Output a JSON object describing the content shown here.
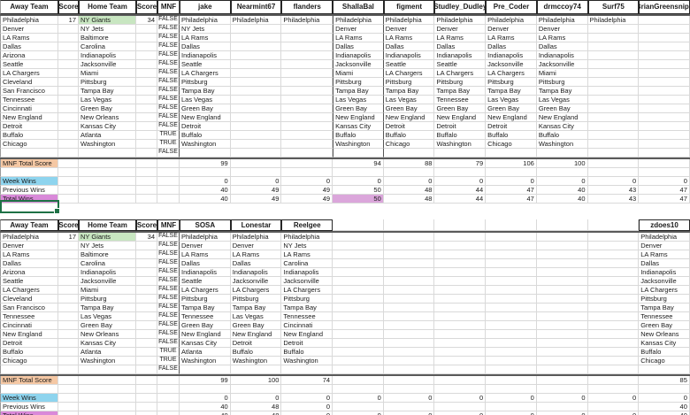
{
  "columns": {
    "away": "Away Team",
    "score": "Score",
    "home": "Home Team",
    "mnf": "MNF"
  },
  "row_labels": {
    "mnf_total": "MNF Total Score",
    "week_wins": "Week Wins",
    "previous_wins": "Previous Wins",
    "total_wins": "Total Wins"
  },
  "colors": {
    "winner_green": "#c8e6c1",
    "mnf_total_peach": "#f5c8a4",
    "week_wins_blue": "#8ed4ee",
    "total_wins_plum": "#d989d9",
    "leader_cell_plum": "#dba6db",
    "selection_green": "#1e7145",
    "gridline": "#d9d9d9",
    "thick_border": "#5a5a5a"
  },
  "games": [
    {
      "away": "Philadelphia",
      "away_score": "17",
      "home": "NY Giants",
      "home_score": "34",
      "mnf": "FALSE"
    },
    {
      "away": "Denver",
      "away_score": "",
      "home": "NY Jets",
      "home_score": "",
      "mnf": "FALSE"
    },
    {
      "away": "LA Rams",
      "away_score": "",
      "home": "Baltimore",
      "home_score": "",
      "mnf": "FALSE"
    },
    {
      "away": "Dallas",
      "away_score": "",
      "home": "Carolina",
      "home_score": "",
      "mnf": "FALSE"
    },
    {
      "away": "Arizona",
      "away_score": "",
      "home": "Indianapolis",
      "home_score": "",
      "mnf": "FALSE"
    },
    {
      "away": "Seattle",
      "away_score": "",
      "home": "Jacksonville",
      "home_score": "",
      "mnf": "FALSE"
    },
    {
      "away": "LA Chargers",
      "away_score": "",
      "home": "Miami",
      "home_score": "",
      "mnf": "FALSE"
    },
    {
      "away": "Cleveland",
      "away_score": "",
      "home": "Pittsburg",
      "home_score": "",
      "mnf": "FALSE"
    },
    {
      "away": "San Francisco",
      "away_score": "",
      "home": "Tampa Bay",
      "home_score": "",
      "mnf": "FALSE"
    },
    {
      "away": "Tennessee",
      "away_score": "",
      "home": "Las Vegas",
      "home_score": "",
      "mnf": "FALSE"
    },
    {
      "away": "Cincinnati",
      "away_score": "",
      "home": "Green Bay",
      "home_score": "",
      "mnf": "FALSE"
    },
    {
      "away": "New England",
      "away_score": "",
      "home": "New Orleans",
      "home_score": "",
      "mnf": "FALSE"
    },
    {
      "away": "Detroit",
      "away_score": "",
      "home": "Kansas City",
      "home_score": "",
      "mnf": "FALSE"
    },
    {
      "away": "Buffalo",
      "away_score": "",
      "home": "Atlanta",
      "home_score": "",
      "mnf": "TRUE"
    },
    {
      "away": "Chicago",
      "away_score": "",
      "home": "Washington",
      "home_score": "",
      "mnf": "TRUE"
    },
    {
      "away": "",
      "away_score": "",
      "home": "",
      "home_score": "",
      "mnf": "FALSE"
    }
  ],
  "sections": [
    {
      "players": [
        {
          "name": "jake",
          "picks": [
            "Philadelphia",
            "NY Jets",
            "LA Rams",
            "Dallas",
            "Indianapolis",
            "Seattle",
            "LA Chargers",
            "Pittsburg",
            "Tampa Bay",
            "Las Vegas",
            "Green Bay",
            "New England",
            "Detroit",
            "Buffalo",
            "Washington"
          ],
          "mnf_total": "99",
          "week_wins": "0",
          "previous_wins": "40",
          "total_wins": "40"
        },
        {
          "name": "Nearmint67",
          "picks": [
            "Philadelphia",
            "",
            "",
            "",
            "",
            "",
            "",
            "",
            "",
            "",
            "",
            "",
            "",
            "",
            ""
          ],
          "mnf_total": "",
          "week_wins": "0",
          "previous_wins": "49",
          "total_wins": "49"
        },
        {
          "name": "flanders",
          "picks": [
            "Philadelphia",
            "",
            "",
            "",
            "",
            "",
            "",
            "",
            "",
            "",
            "",
            "",
            "",
            "",
            ""
          ],
          "mnf_total": "",
          "week_wins": "0",
          "previous_wins": "49",
          "total_wins": "49"
        },
        {
          "name": "ShallaBal",
          "picks": [
            "Philadelphia",
            "Denver",
            "LA Rams",
            "Dallas",
            "Indianapolis",
            "Jacksonville",
            "Miami",
            "Pittsburg",
            "Tampa Bay",
            "Las Vegas",
            "Green Bay",
            "New England",
            "Kansas City",
            "Buffalo",
            "Washington"
          ],
          "mnf_total": "94",
          "week_wins": "0",
          "previous_wins": "50",
          "total_wins": "50",
          "highlight_total": true
        },
        {
          "name": "figment",
          "picks": [
            "Philadelphia",
            "Denver",
            "LA Rams",
            "Dallas",
            "Indianapolis",
            "Seattle",
            "LA Chargers",
            "Pittsburg",
            "Tampa Bay",
            "Las Vegas",
            "Green Bay",
            "New England",
            "Detroit",
            "Buffalo",
            "Chicago"
          ],
          "mnf_total": "88",
          "week_wins": "0",
          "previous_wins": "48",
          "total_wins": "48"
        },
        {
          "name": "Studley_Dudley",
          "picks": [
            "Philadelphia",
            "Denver",
            "LA Rams",
            "Dallas",
            "Indianapolis",
            "Seattle",
            "LA Chargers",
            "Pittsburg",
            "Tampa Bay",
            "Tennessee",
            "Green Bay",
            "New England",
            "Detroit",
            "Buffalo",
            "Washington"
          ],
          "mnf_total": "79",
          "week_wins": "0",
          "previous_wins": "44",
          "total_wins": "44"
        },
        {
          "name": "Pre_Coder",
          "picks": [
            "Philadelphia",
            "Denver",
            "LA Rams",
            "Dallas",
            "Indianapolis",
            "Jacksonville",
            "LA Chargers",
            "Pittsburg",
            "Tampa Bay",
            "Las Vegas",
            "Green Bay",
            "New England",
            "Detroit",
            "Buffalo",
            "Chicago"
          ],
          "mnf_total": "106",
          "week_wins": "0",
          "previous_wins": "47",
          "total_wins": "47"
        },
        {
          "name": "drmccoy74",
          "picks": [
            "Philadelphia",
            "Denver",
            "LA Rams",
            "Dallas",
            "Indianapolis",
            "Jacksonville",
            "Miami",
            "Pittsburg",
            "Tampa Bay",
            "Las Vegas",
            "Green Bay",
            "New England",
            "Kansas City",
            "Buffalo",
            "Washington"
          ],
          "mnf_total": "100",
          "week_wins": "0",
          "previous_wins": "40",
          "total_wins": "40"
        },
        {
          "name": "Surf75",
          "picks": [
            "Philadelphia",
            "",
            "",
            "",
            "",
            "",
            "",
            "",
            "",
            "",
            "",
            "",
            "",
            "",
            ""
          ],
          "mnf_total": "",
          "week_wins": "0",
          "previous_wins": "43",
          "total_wins": "43"
        },
        {
          "name": "BrianGreensnips",
          "picks": [
            "",
            "",
            "",
            "",
            "",
            "",
            "",
            "",
            "",
            "",
            "",
            "",
            "",
            "",
            ""
          ],
          "mnf_total": "",
          "week_wins": "0",
          "previous_wins": "47",
          "total_wins": "47"
        }
      ]
    },
    {
      "players": [
        {
          "name": "SOSA",
          "picks": [
            "Philadelphia",
            "Denver",
            "LA Rams",
            "Dallas",
            "Indianapolis",
            "Seattle",
            "LA Chargers",
            "Pittsburg",
            "Tampa Bay",
            "Tennessee",
            "Green Bay",
            "New England",
            "Kansas City",
            "Atlanta",
            "Washington"
          ],
          "mnf_total": "99",
          "week_wins": "0",
          "previous_wins": "40",
          "total_wins": "40"
        },
        {
          "name": "Lonestar",
          "picks": [
            "Philadelphia",
            "Denver",
            "LA Rams",
            "Dallas",
            "Indianapolis",
            "Jacksonville",
            "LA Chargers",
            "Pittsburg",
            "Tampa Bay",
            "Las Vegas",
            "Green Bay",
            "New England",
            "Detroit",
            "Buffalo",
            "Washington"
          ],
          "mnf_total": "100",
          "week_wins": "0",
          "previous_wins": "48",
          "total_wins": "48"
        },
        {
          "name": "Reelgee",
          "picks": [
            "Philadelphia",
            "NY Jets",
            "LA Rams",
            "Carolina",
            "Indianapolis",
            "Jacksonville",
            "LA Chargers",
            "Pittsburg",
            "Tampa Bay",
            "Tennessee",
            "Cincinnati",
            "New England",
            "Detroit",
            "Buffalo",
            "Washington"
          ],
          "mnf_total": "74",
          "week_wins": "0",
          "previous_wins": "0",
          "total_wins": "0"
        },
        {
          "name": "",
          "picks": [
            "",
            "",
            "",
            "",
            "",
            "",
            "",
            "",
            "",
            "",
            "",
            "",
            "",
            "",
            ""
          ],
          "mnf_total": "",
          "week_wins": "0",
          "previous_wins": "",
          "total_wins": "0"
        },
        {
          "name": "",
          "picks": [
            "",
            "",
            "",
            "",
            "",
            "",
            "",
            "",
            "",
            "",
            "",
            "",
            "",
            "",
            ""
          ],
          "mnf_total": "",
          "week_wins": "0",
          "previous_wins": "",
          "total_wins": "0"
        },
        {
          "name": "",
          "picks": [
            "",
            "",
            "",
            "",
            "",
            "",
            "",
            "",
            "",
            "",
            "",
            "",
            "",
            "",
            ""
          ],
          "mnf_total": "",
          "week_wins": "0",
          "previous_wins": "",
          "total_wins": "0"
        },
        {
          "name": "",
          "picks": [
            "",
            "",
            "",
            "",
            "",
            "",
            "",
            "",
            "",
            "",
            "",
            "",
            "",
            "",
            ""
          ],
          "mnf_total": "",
          "week_wins": "0",
          "previous_wins": "",
          "total_wins": "0"
        },
        {
          "name": "",
          "picks": [
            "",
            "",
            "",
            "",
            "",
            "",
            "",
            "",
            "",
            "",
            "",
            "",
            "",
            "",
            ""
          ],
          "mnf_total": "",
          "week_wins": "0",
          "previous_wins": "",
          "total_wins": "0"
        },
        {
          "name": "",
          "picks": [
            "",
            "",
            "",
            "",
            "",
            "",
            "",
            "",
            "",
            "",
            "",
            "",
            "",
            "",
            ""
          ],
          "mnf_total": "",
          "week_wins": "0",
          "previous_wins": "",
          "total_wins": "0"
        },
        {
          "name": "zdoes10",
          "picks": [
            "Philadelphia",
            "Denver",
            "LA Rams",
            "Dallas",
            "Indianapolis",
            "Jacksonville",
            "LA Chargers",
            "Pittsburg",
            "Tampa Bay",
            "Tennessee",
            "Green Bay",
            "New Orleans",
            "Kansas City",
            "Buffalo",
            "Chicago"
          ],
          "mnf_total": "85",
          "week_wins": "0",
          "previous_wins": "40",
          "total_wins": "40"
        }
      ]
    }
  ]
}
